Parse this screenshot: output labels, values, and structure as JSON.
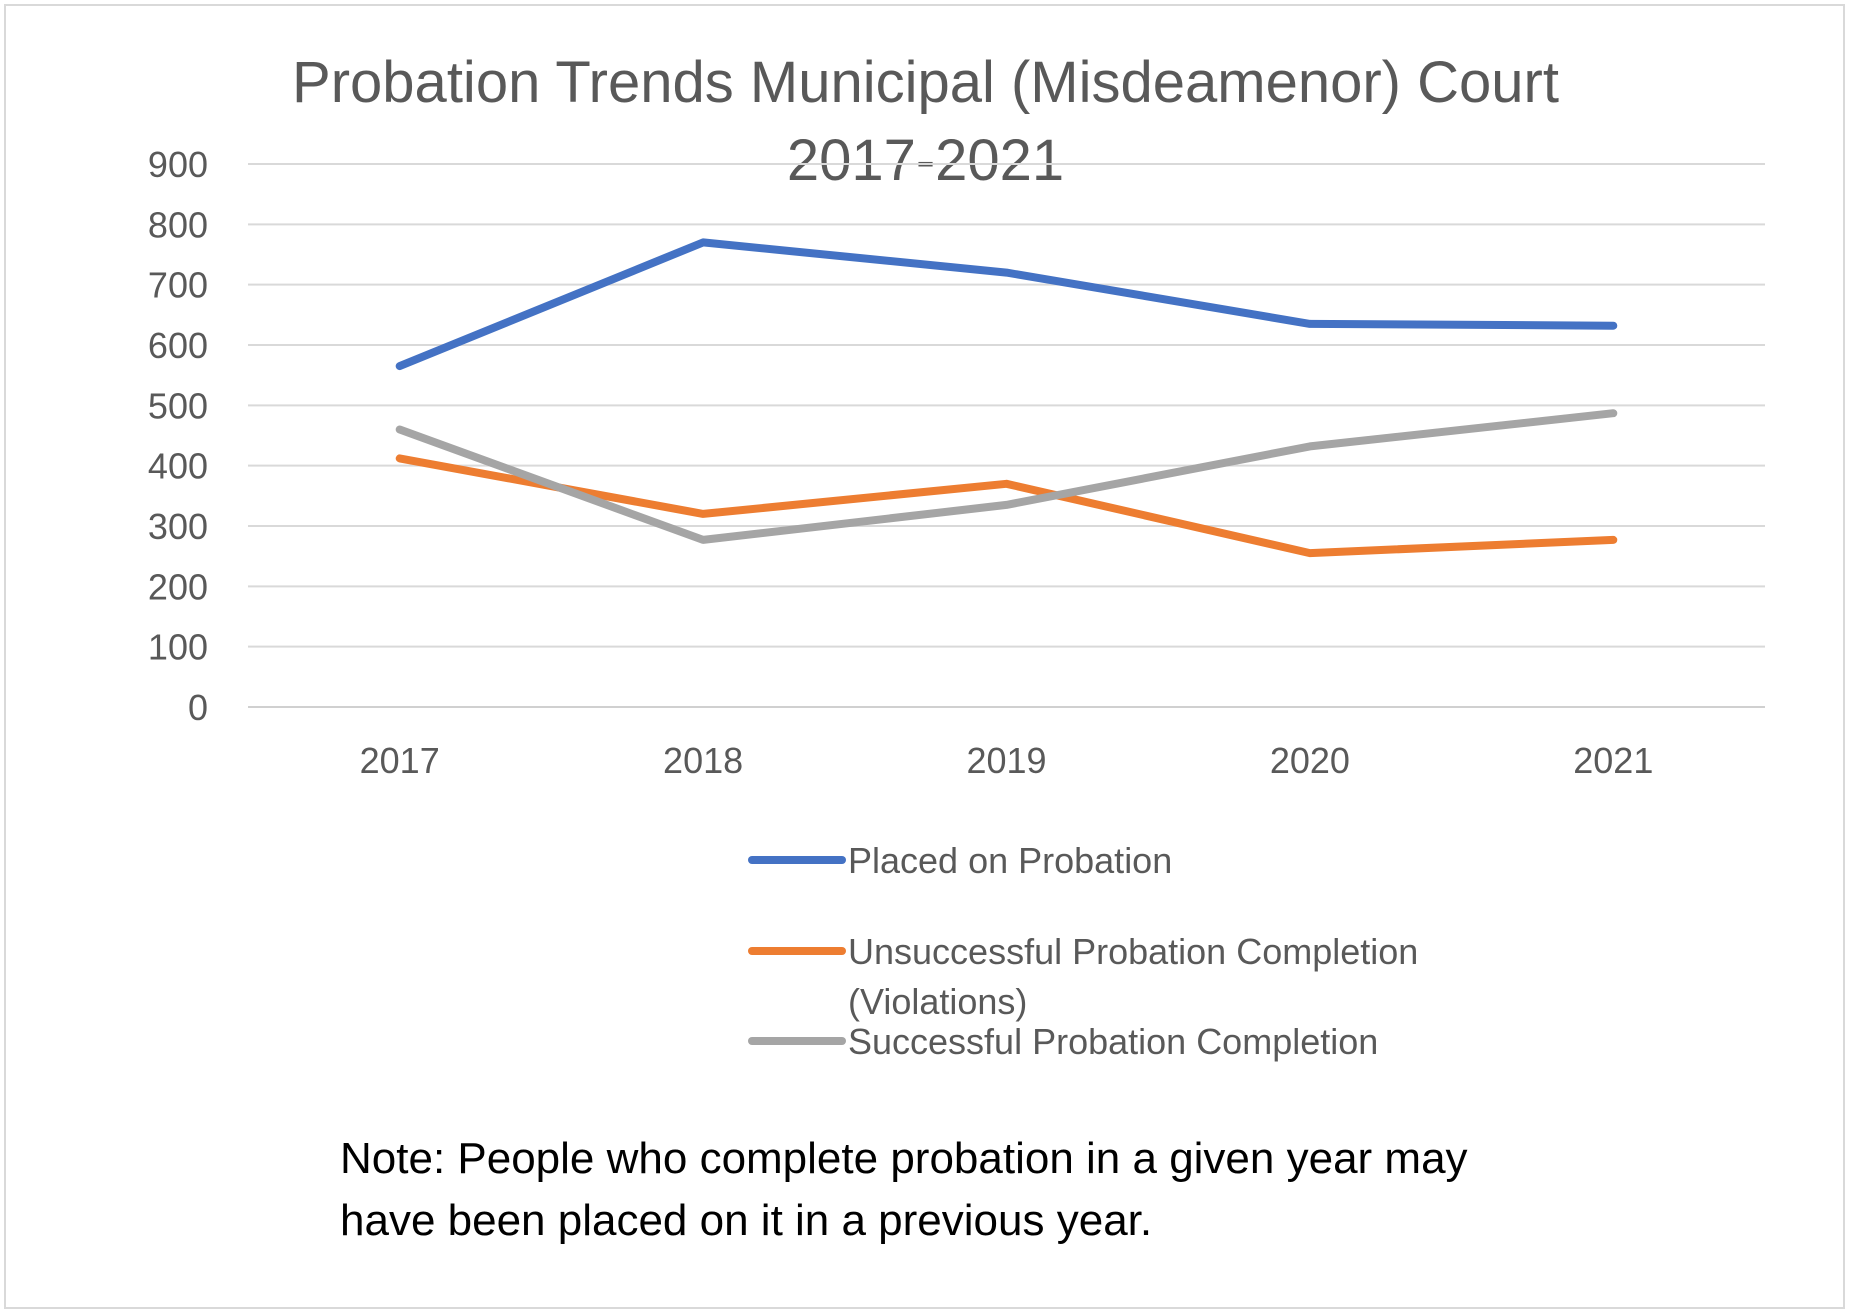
{
  "chart_data": {
    "type": "line",
    "title_lines": [
      "Probation Trends Municipal (Misdeamenor) Court",
      "2017-2021"
    ],
    "xlabel": "",
    "ylabel": "",
    "categories": [
      "2017",
      "2018",
      "2019",
      "2020",
      "2021"
    ],
    "ylim": [
      0,
      900
    ],
    "yticks": [
      "0",
      "100",
      "200",
      "300",
      "400",
      "500",
      "600",
      "700",
      "800",
      "900"
    ],
    "grid": true,
    "legend_position": "bottom",
    "series": [
      {
        "name": "Placed on Probation",
        "color": "#4472C4",
        "values": [
          565,
          770,
          720,
          635,
          632
        ]
      },
      {
        "name": "Unsuccessful Probation Completion (Violations)",
        "color": "#ED7D31",
        "values": [
          412,
          320,
          370,
          255,
          277
        ]
      },
      {
        "name": "Successful Probation Completion",
        "color": "#A5A5A5",
        "values": [
          460,
          277,
          335,
          432,
          487
        ]
      }
    ]
  },
  "legend_items": [
    {
      "lines": [
        "Placed on Probation"
      ]
    },
    {
      "lines": [
        "Unsuccessful Probation Completion",
        "(Violations)"
      ]
    },
    {
      "lines": [
        "Successful Probation Completion"
      ]
    }
  ],
  "note_lines": [
    "Note: People who complete probation in a given year may",
    "have been placed on it in a previous year."
  ]
}
